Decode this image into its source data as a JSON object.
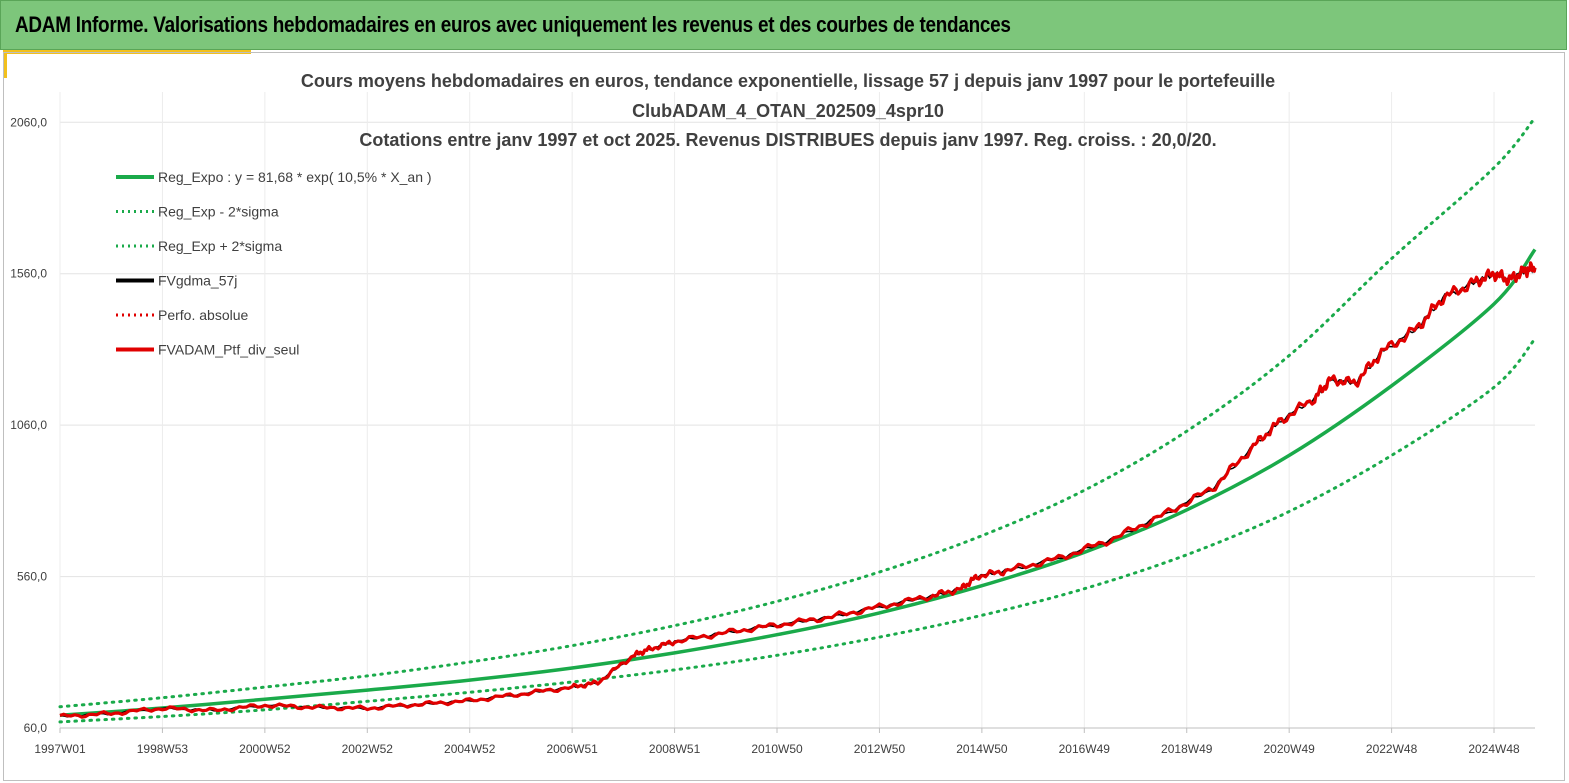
{
  "header": {
    "title": "ADAM Informe. Valorisations hebdomadaires en euros avec uniquement les revenus et des courbes de tendances"
  },
  "colors": {
    "banner": "#7dc67b",
    "accent": "#f2c01c",
    "trend": "#1aaa4a",
    "band": "#1aaa4a",
    "gdma": "#000000",
    "perf": "#e00000",
    "portfolio": "#e00000"
  },
  "chart_data": {
    "type": "line",
    "title_lines": [
      "Cours moyens hebdomadaires  en euros, tendance exponentielle, lissage 57 j depuis janv 1997 pour le portefeuille",
      "ClubADAM_4_OTAN_202509_4spr10",
      "Cotations  entre janv 1997 et oct 2025. Revenus DISTRIBUES depuis janv 1997. Reg. croiss. : 20,0/20."
    ],
    "x_range": [
      1997.0,
      2025.8
    ],
    "ylim": [
      60,
      2160
    ],
    "y_ticks": [
      {
        "value": 60,
        "label": "60,0"
      },
      {
        "value": 560,
        "label": "560,0"
      },
      {
        "value": 1060,
        "label": "1060,0"
      },
      {
        "value": 1560,
        "label": "1560,0"
      },
      {
        "value": 2060,
        "label": "2060,0"
      }
    ],
    "x_ticks": [
      {
        "value": 1997.0,
        "label": "1997W01"
      },
      {
        "value": 1999.0,
        "label": "1998W53"
      },
      {
        "value": 2001.0,
        "label": "2000W52"
      },
      {
        "value": 2003.0,
        "label": "2002W52"
      },
      {
        "value": 2005.0,
        "label": "2004W52"
      },
      {
        "value": 2007.0,
        "label": "2006W51"
      },
      {
        "value": 2009.0,
        "label": "2008W51"
      },
      {
        "value": 2011.0,
        "label": "2010W50"
      },
      {
        "value": 2013.0,
        "label": "2012W50"
      },
      {
        "value": 2015.0,
        "label": "2014W50"
      },
      {
        "value": 2017.0,
        "label": "2016W49"
      },
      {
        "value": 2019.0,
        "label": "2018W49"
      },
      {
        "value": 2021.0,
        "label": "2020W49"
      },
      {
        "value": 2023.0,
        "label": "2022W48"
      },
      {
        "value": 2025.0,
        "label": "2024W48"
      }
    ],
    "grid": true,
    "legend_position": "top-left",
    "legend": [
      {
        "name": "Reg_Expo : y = 81,68 * exp( 10,5% *  X_an )",
        "style": "solid",
        "color": "#1aaa4a"
      },
      {
        "name": "Reg_Exp - 2*sigma",
        "style": "dotted",
        "color": "#1aaa4a"
      },
      {
        "name": "Reg_Exp + 2*sigma",
        "style": "dotted",
        "color": "#1aaa4a"
      },
      {
        "name": "FVgdma_57j",
        "style": "solid",
        "color": "#000000"
      },
      {
        "name": "Perfo. absolue",
        "style": "dotted",
        "color": "#e00000"
      },
      {
        "name": "FVADAM_Ptf_div_seul",
        "style": "solid",
        "color": "#e00000"
      }
    ],
    "series": [
      {
        "name": "Reg_Expo : y = 81,68 * exp( 10,5% *  X_an )",
        "x": [
          1997.0,
          1999.0,
          2001.0,
          2003.0,
          2005.0,
          2007.0,
          2009.0,
          2011.0,
          2013.0,
          2015.0,
          2017.0,
          2019.0,
          2021.0,
          2023.0,
          2025.0,
          2025.8
        ],
        "values": [
          102,
          126,
          155,
          185,
          218,
          258,
          308,
          368,
          440,
          530,
          640,
          780,
          960,
          1190,
          1460,
          1640
        ]
      },
      {
        "name": "Reg_Exp - 2*sigma",
        "x": [
          1997.0,
          1999.0,
          2001.0,
          2003.0,
          2005.0,
          2007.0,
          2009.0,
          2011.0,
          2013.0,
          2015.0,
          2017.0,
          2019.0,
          2021.0,
          2023.0,
          2025.0,
          2025.8
        ],
        "values": [
          80,
          98,
          120,
          148,
          178,
          212,
          252,
          300,
          360,
          432,
          520,
          632,
          775,
          960,
          1185,
          1345
        ]
      },
      {
        "name": "Reg_Exp + 2*sigma",
        "x": [
          1997.0,
          1999.0,
          2001.0,
          2003.0,
          2005.0,
          2007.0,
          2009.0,
          2011.0,
          2013.0,
          2015.0,
          2017.0,
          2019.0,
          2021.0,
          2023.0,
          2025.0,
          2025.8
        ],
        "values": [
          130,
          160,
          195,
          232,
          278,
          332,
          398,
          478,
          575,
          695,
          845,
          1040,
          1290,
          1610,
          1910,
          2075
        ]
      },
      {
        "name": "FVADAM_Ptf_div_seul",
        "x": [
          1997.0,
          1998.0,
          1999.0,
          2000.0,
          2001.0,
          2002.0,
          2003.0,
          2004.0,
          2005.0,
          2006.0,
          2007.0,
          2007.5,
          2008.2,
          2008.5,
          2009.0,
          2010.0,
          2011.0,
          2012.0,
          2013.0,
          2014.0,
          2014.6,
          2014.9,
          2015.5,
          2016.5,
          2017.5,
          2018.5,
          2019.5,
          2020.3,
          2020.8,
          2021.5,
          2021.8,
          2022.3,
          2022.8,
          2023.5,
          2024.0,
          2024.6,
          2025.0,
          2025.3,
          2025.6,
          2025.8
        ],
        "values": [
          98,
          108,
          125,
          118,
          135,
          128,
          125,
          138,
          150,
          172,
          195,
          210,
          300,
          320,
          345,
          375,
          400,
          425,
          460,
          495,
          520,
          560,
          580,
          620,
          680,
          760,
          850,
          990,
          1070,
          1150,
          1210,
          1200,
          1300,
          1380,
          1480,
          1530,
          1560,
          1540,
          1570,
          1580
        ]
      }
    ]
  }
}
